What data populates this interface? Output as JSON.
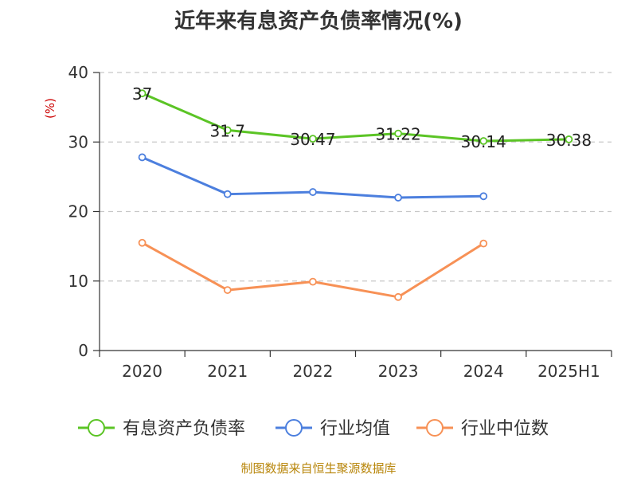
{
  "title": "近年来有息资产负债率情况(%)",
  "source": "制图数据来自恒生聚源数据库",
  "chart_data": {
    "type": "line",
    "title": "近年来有息资产负债率情况(%)",
    "ylabel": "(%)",
    "xlabel": "",
    "categories": [
      "2020",
      "2021",
      "2022",
      "2023",
      "2024",
      "2025H1"
    ],
    "ylim": [
      0,
      40
    ],
    "yticks": [
      0,
      10,
      20,
      30,
      40
    ],
    "grid": true,
    "legend": "bottom",
    "series": [
      {
        "name": "有息资产负债率",
        "color": "#5bc425",
        "values": [
          37,
          31.7,
          30.47,
          31.22,
          30.14,
          30.38
        ],
        "labels": [
          "37",
          "31.7",
          "30.47",
          "31.22",
          "30.14",
          "30.38"
        ]
      },
      {
        "name": "行业均值",
        "color": "#4c7fde",
        "values": [
          27.8,
          22.5,
          22.8,
          22.0,
          22.2,
          null
        ]
      },
      {
        "name": "行业中位数",
        "color": "#f79156",
        "values": [
          15.5,
          8.7,
          9.9,
          7.7,
          15.4,
          null
        ]
      }
    ]
  }
}
